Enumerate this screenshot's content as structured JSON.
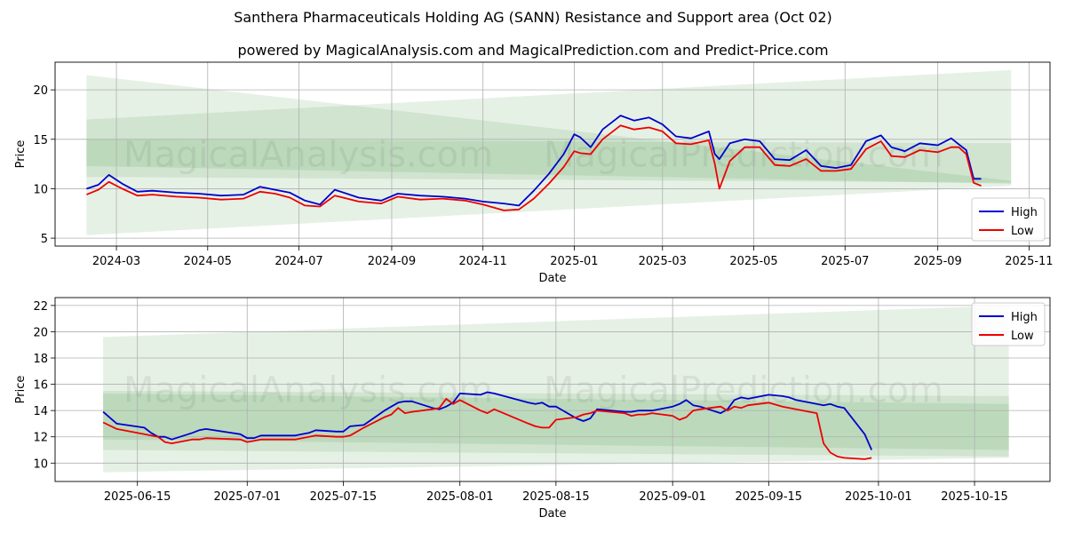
{
  "header": {
    "title": "Santhera Pharmaceuticals Holding AG (SANN) Resistance and Support area (Oct 02)",
    "subtitle": "powered by MagicalAnalysis.com and MagicalPrediction.com and Predict-Price.com"
  },
  "watermarks": [
    "MagicalAnalysis.com",
    "MagicalPrediction.com"
  ],
  "legend": {
    "high": "High",
    "low": "Low"
  },
  "colors": {
    "high": "#0000cc",
    "low": "#ee0000",
    "band": "#2e8b2e",
    "grid": "#b0b0b0"
  },
  "chart_data": [
    {
      "type": "line",
      "xlabel": "Date",
      "ylabel": "Price",
      "xlim": [
        "2024-01-20",
        "2025-11-15"
      ],
      "ylim": [
        4.2,
        22.8
      ],
      "x_ticks": [
        "2024-03",
        "2024-05",
        "2024-07",
        "2024-09",
        "2024-11",
        "2025-01",
        "2025-03",
        "2025-05",
        "2025-07",
        "2025-09",
        "2025-11"
      ],
      "y_ticks": [
        5,
        10,
        15,
        20
      ],
      "grid": true,
      "legend_position": "lower-right",
      "bands": [
        {
          "x": [
            "2024-02-10",
            "2025-10-20"
          ],
          "upper": [
            21.5,
            10.8
          ],
          "lower": [
            12.3,
            10.5
          ],
          "opacity": 0.12
        },
        {
          "x": [
            "2024-02-10",
            "2025-10-20"
          ],
          "upper": [
            17.0,
            22.0
          ],
          "lower": [
            5.3,
            10.3
          ],
          "opacity": 0.12
        },
        {
          "x": [
            "2024-02-10",
            "2025-10-20"
          ],
          "upper": [
            15.0,
            14.6
          ],
          "lower": [
            11.2,
            10.6
          ],
          "opacity": 0.12
        }
      ],
      "series": [
        {
          "name": "High",
          "x": [
            "2024-02-10",
            "2024-02-18",
            "2024-02-25",
            "2024-03-05",
            "2024-03-15",
            "2024-03-25",
            "2024-04-10",
            "2024-04-25",
            "2024-05-10",
            "2024-05-25",
            "2024-06-05",
            "2024-06-15",
            "2024-06-25",
            "2024-07-05",
            "2024-07-15",
            "2024-07-25",
            "2024-08-10",
            "2024-08-25",
            "2024-09-05",
            "2024-09-20",
            "2024-10-05",
            "2024-10-20",
            "2024-11-01",
            "2024-11-15",
            "2024-11-25",
            "2024-12-05",
            "2024-12-15",
            "2024-12-25",
            "2025-01-01",
            "2025-01-05",
            "2025-01-12",
            "2025-01-20",
            "2025-02-01",
            "2025-02-10",
            "2025-02-20",
            "2025-03-01",
            "2025-03-10",
            "2025-03-20",
            "2025-04-01",
            "2025-04-05",
            "2025-04-08",
            "2025-04-15",
            "2025-04-25",
            "2025-05-05",
            "2025-05-15",
            "2025-05-25",
            "2025-06-05",
            "2025-06-15",
            "2025-06-25",
            "2025-07-05",
            "2025-07-15",
            "2025-07-25",
            "2025-08-01",
            "2025-08-10",
            "2025-08-20",
            "2025-09-01",
            "2025-09-10",
            "2025-09-15",
            "2025-09-20",
            "2025-09-25",
            "2025-09-30"
          ],
          "values": [
            10.0,
            10.4,
            11.4,
            10.5,
            9.7,
            9.8,
            9.6,
            9.5,
            9.3,
            9.4,
            10.2,
            9.9,
            9.6,
            8.8,
            8.4,
            9.9,
            9.1,
            8.8,
            9.5,
            9.3,
            9.2,
            9.0,
            8.7,
            8.5,
            8.3,
            9.8,
            11.5,
            13.5,
            15.5,
            15.2,
            14.2,
            16.0,
            17.4,
            16.9,
            17.2,
            16.5,
            15.3,
            15.1,
            15.8,
            13.5,
            13.0,
            14.6,
            15.0,
            14.8,
            13.0,
            12.9,
            13.9,
            12.3,
            12.1,
            12.4,
            14.8,
            15.4,
            14.2,
            13.8,
            14.6,
            14.4,
            15.1,
            14.5,
            13.9,
            11.0,
            11.0
          ]
        },
        {
          "name": "Low",
          "x": [
            "2024-02-10",
            "2024-02-18",
            "2024-02-25",
            "2024-03-05",
            "2024-03-15",
            "2024-03-25",
            "2024-04-10",
            "2024-04-25",
            "2024-05-10",
            "2024-05-25",
            "2024-06-05",
            "2024-06-15",
            "2024-06-25",
            "2024-07-05",
            "2024-07-15",
            "2024-07-25",
            "2024-08-10",
            "2024-08-25",
            "2024-09-05",
            "2024-09-20",
            "2024-10-05",
            "2024-10-20",
            "2024-11-01",
            "2024-11-15",
            "2024-11-25",
            "2024-12-05",
            "2024-12-15",
            "2024-12-25",
            "2025-01-01",
            "2025-01-05",
            "2025-01-12",
            "2025-01-20",
            "2025-02-01",
            "2025-02-10",
            "2025-02-20",
            "2025-03-01",
            "2025-03-10",
            "2025-03-20",
            "2025-04-01",
            "2025-04-05",
            "2025-04-08",
            "2025-04-15",
            "2025-04-25",
            "2025-05-05",
            "2025-05-15",
            "2025-05-25",
            "2025-06-05",
            "2025-06-15",
            "2025-06-25",
            "2025-07-05",
            "2025-07-15",
            "2025-07-25",
            "2025-08-01",
            "2025-08-10",
            "2025-08-20",
            "2025-09-01",
            "2025-09-10",
            "2025-09-15",
            "2025-09-20",
            "2025-09-25",
            "2025-09-30"
          ],
          "values": [
            9.4,
            9.9,
            10.7,
            10.0,
            9.3,
            9.4,
            9.2,
            9.1,
            8.9,
            9.0,
            9.7,
            9.5,
            9.1,
            8.3,
            8.2,
            9.3,
            8.7,
            8.5,
            9.2,
            8.9,
            9.0,
            8.8,
            8.4,
            7.8,
            7.9,
            9.0,
            10.5,
            12.2,
            13.8,
            13.6,
            13.5,
            15.0,
            16.4,
            16.0,
            16.2,
            15.8,
            14.6,
            14.5,
            14.9,
            12.5,
            10.0,
            12.8,
            14.2,
            14.2,
            12.4,
            12.3,
            13.0,
            11.8,
            11.8,
            12.0,
            14.0,
            14.8,
            13.3,
            13.2,
            13.9,
            13.7,
            14.2,
            14.2,
            13.5,
            10.6,
            10.3
          ]
        }
      ]
    },
    {
      "type": "line",
      "xlabel": "Date",
      "ylabel": "Price",
      "xlim": [
        "2025-06-03",
        "2025-10-26"
      ],
      "ylim": [
        8.6,
        22.6
      ],
      "x_ticks": [
        "2025-06-15",
        "2025-07-01",
        "2025-07-15",
        "2025-08-01",
        "2025-08-15",
        "2025-09-01",
        "2025-09-15",
        "2025-10-01",
        "2025-10-15"
      ],
      "y_ticks": [
        10,
        12,
        14,
        16,
        18,
        20,
        22
      ],
      "grid": true,
      "legend_position": "top-right",
      "bands": [
        {
          "x": [
            "2025-06-10",
            "2025-10-20"
          ],
          "upper": [
            19.6,
            22.0
          ],
          "lower": [
            9.3,
            10.4
          ],
          "opacity": 0.12
        },
        {
          "x": [
            "2025-06-10",
            "2025-10-20"
          ],
          "upper": [
            15.5,
            15.1
          ],
          "lower": [
            11.8,
            11.0
          ],
          "opacity": 0.12
        },
        {
          "x": [
            "2025-06-10",
            "2025-10-20"
          ],
          "upper": [
            15.3,
            14.5
          ],
          "lower": [
            11.0,
            10.5
          ],
          "opacity": 0.12
        }
      ],
      "series": [
        {
          "name": "High",
          "x": [
            "2025-06-10",
            "2025-06-12",
            "2025-06-16",
            "2025-06-17",
            "2025-06-18",
            "2025-06-19",
            "2025-06-20",
            "2025-06-23",
            "2025-06-24",
            "2025-06-25",
            "2025-06-30",
            "2025-07-01",
            "2025-07-02",
            "2025-07-03",
            "2025-07-08",
            "2025-07-10",
            "2025-07-11",
            "2025-07-14",
            "2025-07-15",
            "2025-07-16",
            "2025-07-18",
            "2025-07-21",
            "2025-07-22",
            "2025-07-23",
            "2025-07-24",
            "2025-07-25",
            "2025-07-28",
            "2025-07-29",
            "2025-07-30",
            "2025-07-31",
            "2025-08-01",
            "2025-08-04",
            "2025-08-05",
            "2025-08-06",
            "2025-08-11",
            "2025-08-12",
            "2025-08-13",
            "2025-08-14",
            "2025-08-15",
            "2025-08-18",
            "2025-08-19",
            "2025-08-20",
            "2025-08-21",
            "2025-08-25",
            "2025-08-26",
            "2025-08-27",
            "2025-08-28",
            "2025-08-29",
            "2025-09-01",
            "2025-09-02",
            "2025-09-03",
            "2025-09-04",
            "2025-09-05",
            "2025-09-08",
            "2025-09-09",
            "2025-09-10",
            "2025-09-11",
            "2025-09-12",
            "2025-09-15",
            "2025-09-17",
            "2025-09-18",
            "2025-09-19",
            "2025-09-22",
            "2025-09-23",
            "2025-09-24",
            "2025-09-25",
            "2025-09-26",
            "2025-09-29",
            "2025-09-30"
          ],
          "values": [
            13.9,
            13.0,
            12.7,
            12.3,
            12.0,
            12.0,
            11.8,
            12.3,
            12.5,
            12.6,
            12.2,
            11.9,
            11.9,
            12.1,
            12.1,
            12.3,
            12.5,
            12.4,
            12.4,
            12.8,
            12.9,
            14.0,
            14.3,
            14.6,
            14.7,
            14.7,
            14.2,
            14.1,
            14.3,
            14.6,
            15.3,
            15.2,
            15.4,
            15.3,
            14.6,
            14.5,
            14.6,
            14.3,
            14.3,
            13.4,
            13.2,
            13.4,
            14.1,
            13.9,
            13.9,
            14.0,
            14.0,
            14.0,
            14.3,
            14.5,
            14.8,
            14.4,
            14.3,
            13.8,
            14.1,
            14.8,
            15.0,
            14.9,
            15.2,
            15.1,
            15.0,
            14.8,
            14.5,
            14.4,
            14.5,
            14.3,
            14.2,
            12.2,
            11.0
          ]
        },
        {
          "name": "Low",
          "x": [
            "2025-06-10",
            "2025-06-12",
            "2025-06-16",
            "2025-06-17",
            "2025-06-18",
            "2025-06-19",
            "2025-06-20",
            "2025-06-23",
            "2025-06-24",
            "2025-06-25",
            "2025-06-30",
            "2025-07-01",
            "2025-07-02",
            "2025-07-03",
            "2025-07-08",
            "2025-07-10",
            "2025-07-11",
            "2025-07-14",
            "2025-07-15",
            "2025-07-16",
            "2025-07-18",
            "2025-07-21",
            "2025-07-22",
            "2025-07-23",
            "2025-07-24",
            "2025-07-25",
            "2025-07-28",
            "2025-07-29",
            "2025-07-30",
            "2025-07-31",
            "2025-08-01",
            "2025-08-04",
            "2025-08-05",
            "2025-08-06",
            "2025-08-11",
            "2025-08-12",
            "2025-08-13",
            "2025-08-14",
            "2025-08-15",
            "2025-08-18",
            "2025-08-19",
            "2025-08-20",
            "2025-08-21",
            "2025-08-25",
            "2025-08-26",
            "2025-08-27",
            "2025-08-28",
            "2025-08-29",
            "2025-09-01",
            "2025-09-02",
            "2025-09-03",
            "2025-09-04",
            "2025-09-05",
            "2025-09-08",
            "2025-09-09",
            "2025-09-10",
            "2025-09-11",
            "2025-09-12",
            "2025-09-15",
            "2025-09-17",
            "2025-09-18",
            "2025-09-19",
            "2025-09-22",
            "2025-09-23",
            "2025-09-24",
            "2025-09-25",
            "2025-09-26",
            "2025-09-29",
            "2025-09-30"
          ],
          "values": [
            13.1,
            12.6,
            12.2,
            12.1,
            12.0,
            11.6,
            11.5,
            11.8,
            11.8,
            11.9,
            11.8,
            11.6,
            11.7,
            11.8,
            11.8,
            12.0,
            12.1,
            12.0,
            12.0,
            12.1,
            12.7,
            13.5,
            13.7,
            14.2,
            13.8,
            13.9,
            14.1,
            14.2,
            14.9,
            14.5,
            14.8,
            14.0,
            13.8,
            14.1,
            13.0,
            12.8,
            12.7,
            12.7,
            13.3,
            13.5,
            13.7,
            13.8,
            14.0,
            13.8,
            13.6,
            13.7,
            13.7,
            13.8,
            13.6,
            13.3,
            13.5,
            14.0,
            14.1,
            14.3,
            14.0,
            14.3,
            14.2,
            14.4,
            14.6,
            14.3,
            14.2,
            14.1,
            13.8,
            11.5,
            10.8,
            10.5,
            10.4,
            10.3,
            10.4
          ]
        }
      ]
    }
  ]
}
